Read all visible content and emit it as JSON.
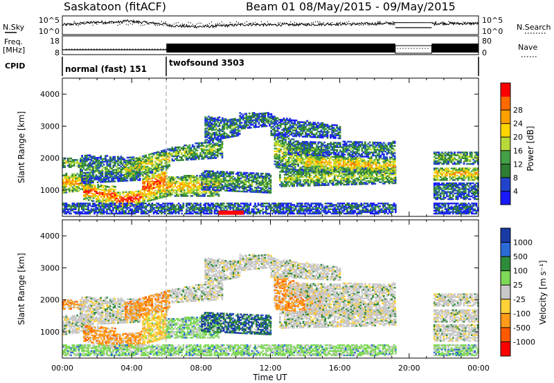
{
  "header": {
    "station": "Saskatoon (fitACF)",
    "beam": "Beam 01",
    "date_range": "08/May/2015 - 09/May/2015"
  },
  "top_panels": {
    "nsky_label": "N.Sky",
    "nsky_ticks": [
      "10^5",
      "10^0"
    ],
    "nsearch_label": "N.Search",
    "nsearch_ticks": [
      "10^5",
      "10^0"
    ],
    "freq_label_1": "Freq.",
    "freq_label_2": "[MHz]",
    "freq_ticks": [
      "18",
      "8"
    ],
    "nave_label": "Nave",
    "nave_ticks": [
      "80",
      "0"
    ],
    "cpid_label": "CPID",
    "cpid_segments": [
      {
        "label": "normal (fast) 151",
        "start_h": 0,
        "end_h": 6
      },
      {
        "label": "twofsound 3503",
        "start_h": 6,
        "end_h": 24
      }
    ]
  },
  "chart_data": [
    {
      "type": "heatmap",
      "title": "",
      "ylabel": "Slant Range [km]",
      "ylim": [
        180,
        4500
      ],
      "yticks": [
        "1000",
        "2000",
        "3000",
        "4000"
      ],
      "xlim_hours": [
        0,
        24
      ],
      "colorbar": {
        "label": "Power [dB]",
        "ticks": [
          "4",
          "8",
          "12",
          "16",
          "20",
          "24",
          "28"
        ],
        "colors": [
          "#1a1aff",
          "#2244cc",
          "#2e7d32",
          "#43a047",
          "#b7d93a",
          "#ffd400",
          "#ffa000",
          "#ff6a00",
          "#ff0000"
        ]
      }
    },
    {
      "type": "heatmap",
      "title": "",
      "ylabel": "Slant Range [km]",
      "ylim": [
        180,
        4500
      ],
      "yticks": [
        "1000",
        "2000",
        "3000",
        "4000"
      ],
      "xlim_hours": [
        0,
        24
      ],
      "xlabel": "Time UT",
      "xticks": [
        "00:00",
        "04:00",
        "08:00",
        "12:00",
        "16:00",
        "20:00",
        "00:00"
      ],
      "colorbar": {
        "label": "Velocity [m s⁻¹]",
        "ticks": [
          "1000",
          "500",
          "100",
          "25",
          "-25",
          "-100",
          "-500",
          "-1000"
        ],
        "colors": [
          "#1a3aa6",
          "#2a6bd6",
          "#2e8b3a",
          "#7ed957",
          "#c8c8c8",
          "#ffd23a",
          "#ff9a1a",
          "#ff5a00",
          "#ff0000"
        ]
      }
    }
  ]
}
